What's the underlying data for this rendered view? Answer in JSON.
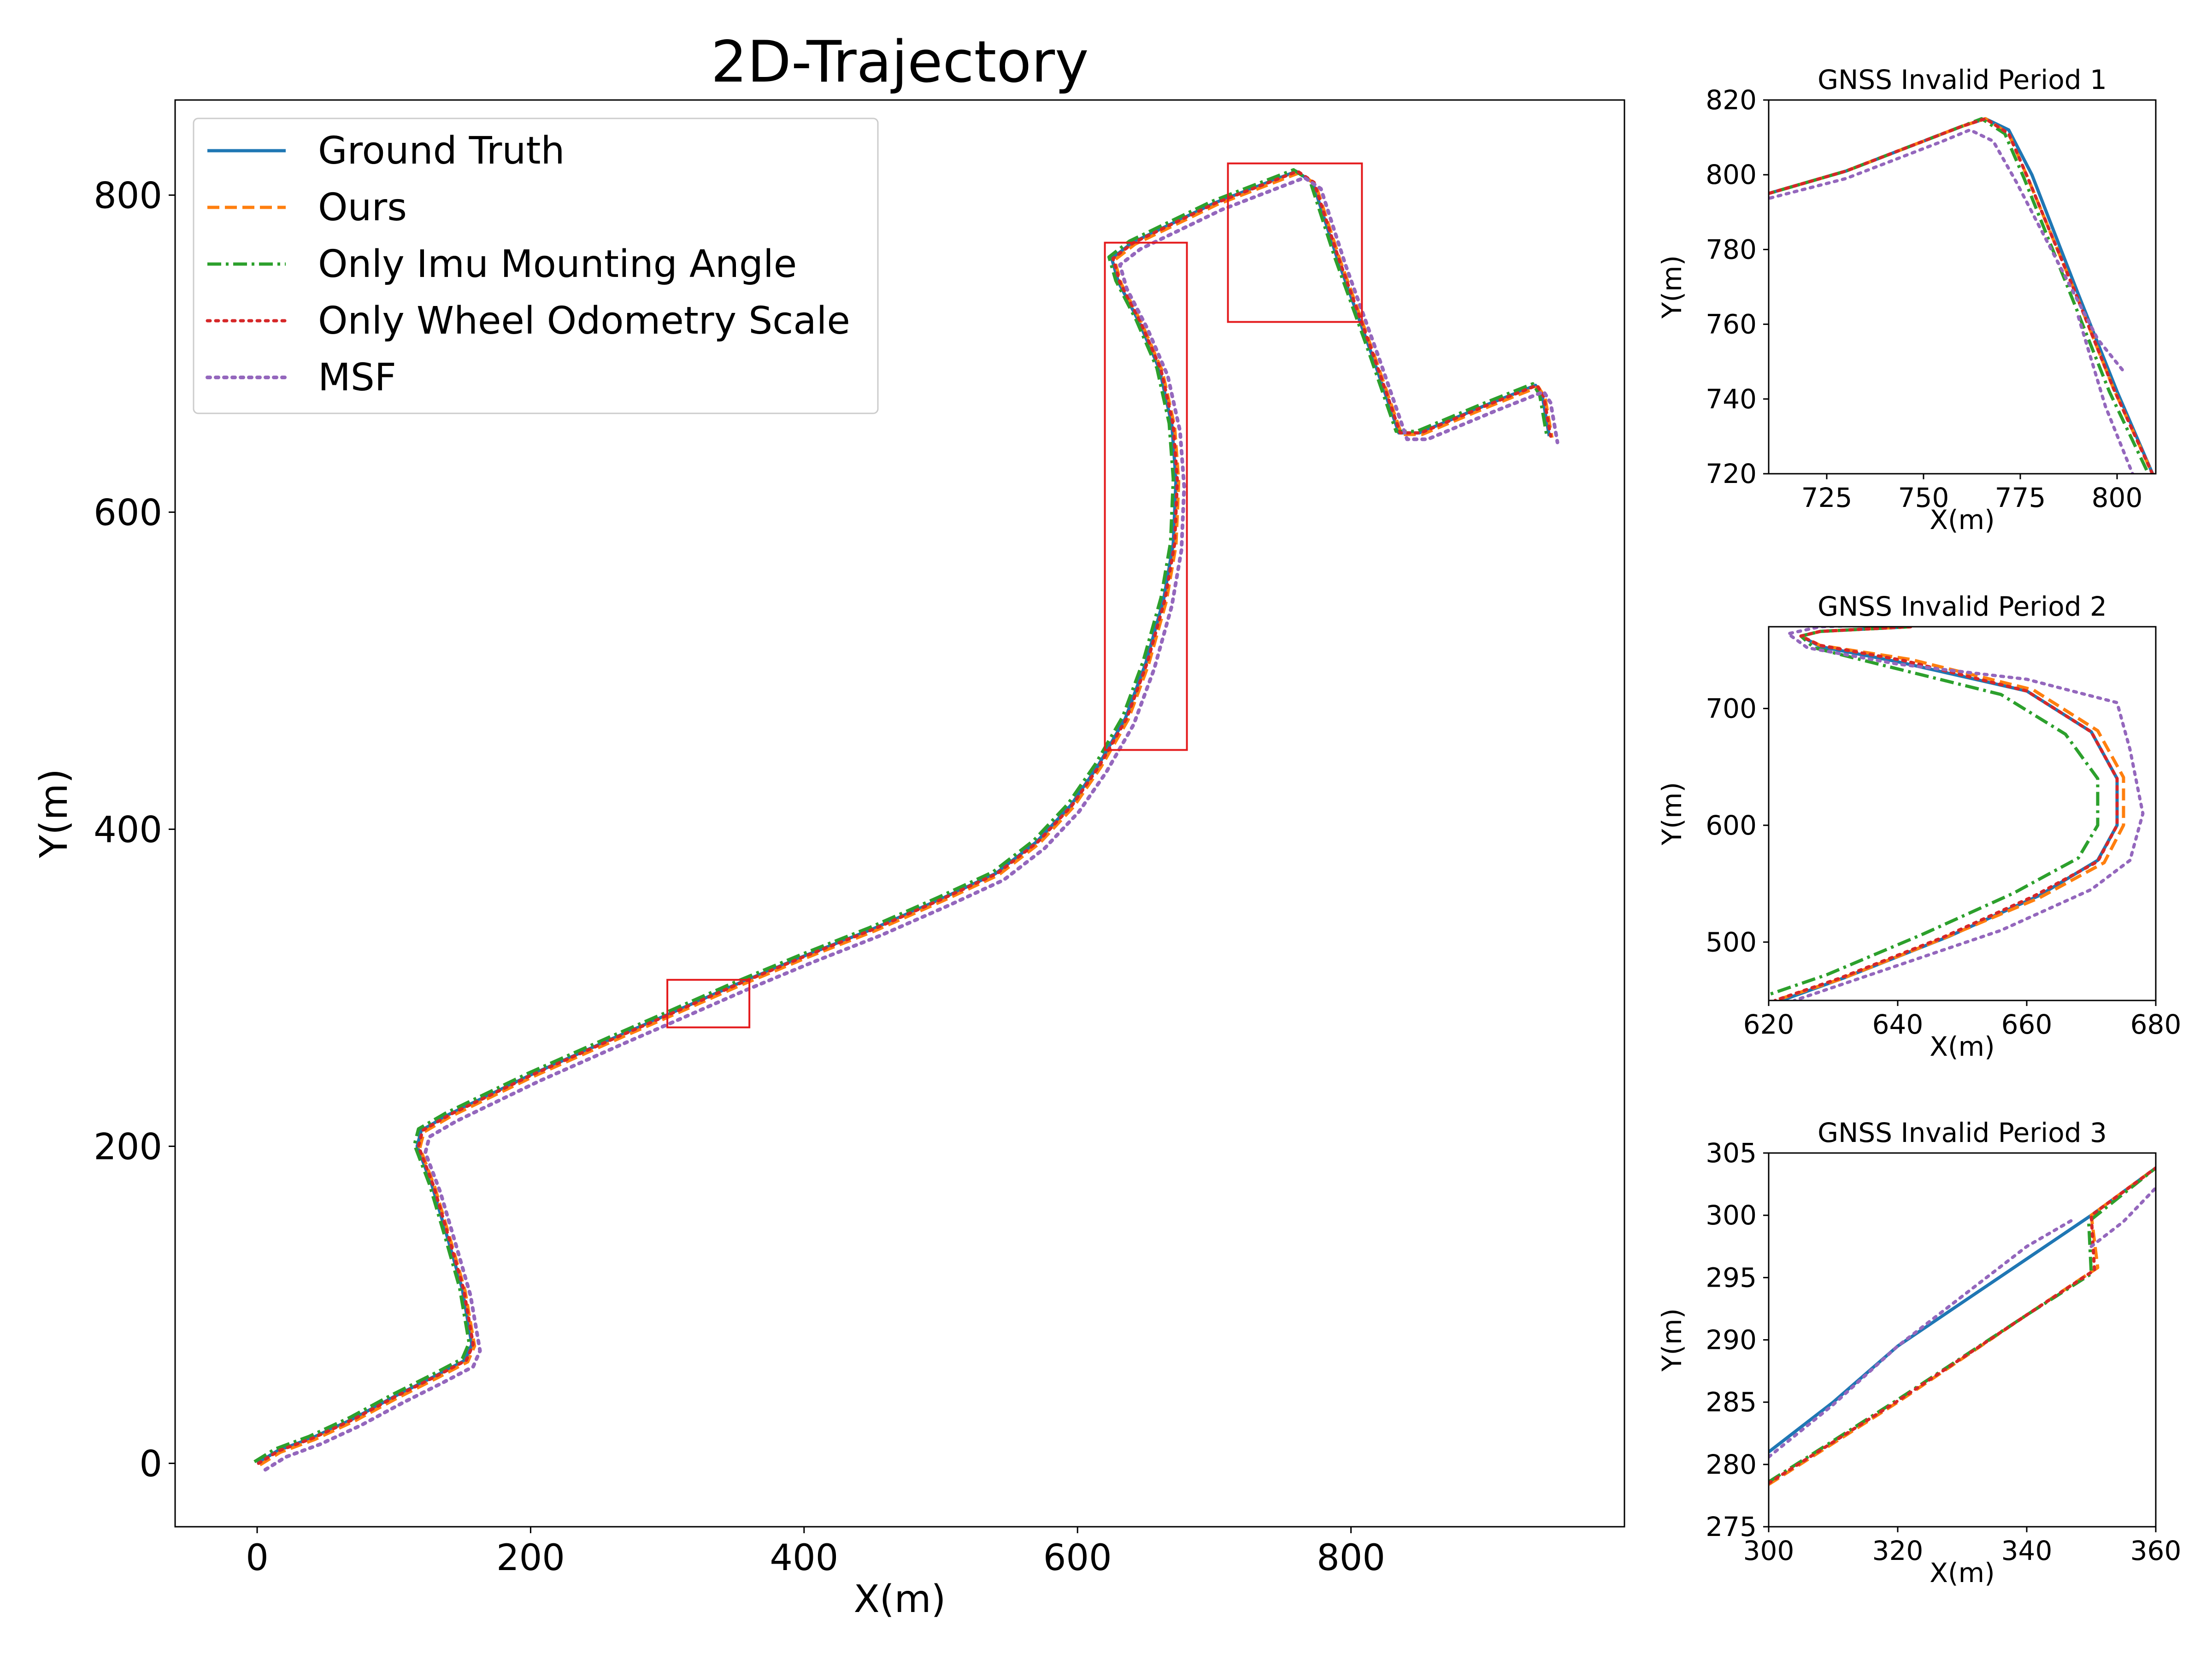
{
  "chart_data": [
    {
      "type": "line",
      "title": "2D-Trajectory",
      "xlabel": "X(m)",
      "ylabel": "Y(m)",
      "xlim": [
        -60,
        1000
      ],
      "ylim": [
        -40,
        860
      ],
      "xticks": [
        0,
        200,
        400,
        600,
        800
      ],
      "yticks": [
        0,
        200,
        400,
        600,
        800
      ],
      "legend_position": "top-left",
      "colors": {
        "ground_truth": "#1f77b4",
        "ours": "#ff7f0e",
        "imu": "#2ca02c",
        "wheel": "#d62728",
        "msf": "#9467bd",
        "box": "#e41a1c"
      },
      "series": [
        {
          "name": "Ground Truth",
          "key": "gt",
          "style": "solid",
          "color": "#1f77b4",
          "width": 7
        },
        {
          "name": "Ours",
          "key": "ours",
          "style": "dashed",
          "color": "#ff7f0e",
          "width": 7
        },
        {
          "name": "Only Imu Mounting Angle",
          "key": "imu",
          "style": "dashdot",
          "color": "#2ca02c",
          "width": 7
        },
        {
          "name": "Only Wheel Odometry Scale",
          "key": "wheel",
          "style": "dotted",
          "color": "#d62728",
          "width": 7
        },
        {
          "name": "MSF",
          "key": "msf",
          "style": "dotted",
          "color": "#9467bd",
          "width": 8
        }
      ],
      "trajectory": [
        [
          0,
          0
        ],
        [
          15,
          8
        ],
        [
          40,
          16
        ],
        [
          70,
          28
        ],
        [
          100,
          42
        ],
        [
          130,
          55
        ],
        [
          152,
          65
        ],
        [
          157,
          75
        ],
        [
          150,
          110
        ],
        [
          140,
          140
        ],
        [
          128,
          175
        ],
        [
          117,
          200
        ],
        [
          120,
          210
        ],
        [
          140,
          220
        ],
        [
          200,
          245
        ],
        [
          260,
          268
        ],
        [
          300,
          283
        ],
        [
          350,
          302
        ],
        [
          400,
          320
        ],
        [
          450,
          337
        ],
        [
          500,
          356
        ],
        [
          540,
          372
        ],
        [
          570,
          392
        ],
        [
          595,
          415
        ],
        [
          615,
          440
        ],
        [
          635,
          470
        ],
        [
          650,
          505
        ],
        [
          663,
          545
        ],
        [
          670,
          580
        ],
        [
          672,
          620
        ],
        [
          669,
          655
        ],
        [
          660,
          690
        ],
        [
          645,
          720
        ],
        [
          630,
          745
        ],
        [
          625,
          760
        ],
        [
          640,
          770
        ],
        [
          700,
          795
        ],
        [
          760,
          815
        ],
        [
          772,
          808
        ],
        [
          790,
          760
        ],
        [
          815,
          700
        ],
        [
          835,
          650
        ],
        [
          850,
          650
        ],
        [
          900,
          668
        ],
        [
          935,
          680
        ],
        [
          940,
          673
        ],
        [
          945,
          648
        ]
      ],
      "ours_offsets": {
        "x": 2,
        "y": -1
      },
      "imu_offsets": {
        "x": -2,
        "y": 1
      },
      "wheel_offsets": {
        "x": 1,
        "y": 0
      },
      "msf_offsets": {
        "x": 6,
        "y": -4
      },
      "boxes": [
        {
          "label": "GNSS Invalid Period 1",
          "x": [
            710,
            808
          ],
          "y": [
            720,
            820
          ]
        },
        {
          "label": "GNSS Invalid Period 2",
          "x": [
            620,
            680
          ],
          "y": [
            450,
            770
          ]
        },
        {
          "label": "GNSS Invalid Period 3",
          "x": [
            300,
            360
          ],
          "y": [
            275,
            305
          ]
        }
      ]
    },
    {
      "type": "line",
      "title": "GNSS Invalid Period 1",
      "xlabel": "X(m)",
      "ylabel": "Y(m)",
      "xlim": [
        710,
        810
      ],
      "ylim": [
        720,
        820
      ],
      "xticks": [
        725,
        750,
        775,
        800
      ],
      "yticks": [
        720,
        740,
        760,
        780,
        800,
        820
      ],
      "series": [
        {
          "key": "gt",
          "color": "#1f77b4",
          "style": "solid",
          "points": [
            [
              700,
              792
            ],
            [
              730,
              801
            ],
            [
              760,
              813
            ],
            [
              766,
              815
            ],
            [
              772,
              812
            ],
            [
              778,
              800
            ],
            [
              790,
              768
            ],
            [
              800,
              742
            ],
            [
              810,
              718
            ]
          ]
        },
        {
          "key": "ours",
          "color": "#ff7f0e",
          "style": "dashed",
          "points": [
            [
              700,
              792
            ],
            [
              730,
              801
            ],
            [
              760,
              813
            ],
            [
              766,
              815
            ],
            [
              772,
              811
            ],
            [
              777,
              799
            ],
            [
              789,
              769
            ],
            [
              799,
              743
            ],
            [
              810,
              718
            ]
          ]
        },
        {
          "key": "imu",
          "color": "#2ca02c",
          "style": "dashdot",
          "points": [
            [
              700,
              792
            ],
            [
              730,
              801
            ],
            [
              760,
              813
            ],
            [
              765,
              815
            ],
            [
              771,
              811
            ],
            [
              776,
              799
            ],
            [
              788,
              768
            ],
            [
              798,
              742
            ],
            [
              809,
              718
            ]
          ]
        },
        {
          "key": "wheel",
          "color": "#d62728",
          "style": "dotted",
          "points": [
            [
              700,
              792
            ],
            [
              730,
              801
            ],
            [
              760,
              813
            ],
            [
              766,
              815
            ],
            [
              772,
              811
            ],
            [
              777,
              799
            ],
            [
              789,
              769
            ],
            [
              799,
              743
            ],
            [
              810,
              718
            ]
          ]
        },
        {
          "key": "msf",
          "color": "#9467bd",
          "style": "dotted",
          "points": [
            [
              700,
              791
            ],
            [
              730,
              799
            ],
            [
              755,
              809
            ],
            [
              762,
              812
            ],
            [
              768,
              809
            ],
            [
              774,
              798
            ],
            [
              788,
              770
            ],
            [
              795,
              756
            ],
            [
              802,
              747
            ]
          ]
        },
        {
          "key": "msf2",
          "color": "#9467bd",
          "style": "dotted",
          "points": [
            [
              790,
              762
            ],
            [
              797,
              738
            ],
            [
              804,
              720
            ]
          ]
        }
      ]
    },
    {
      "type": "line",
      "title": "GNSS Invalid Period 2",
      "xlabel": "X(m)",
      "ylabel": "Y(m)",
      "xlim": [
        620,
        680
      ],
      "ylim": [
        450,
        770
      ],
      "xticks": [
        620,
        640,
        660,
        680
      ],
      "yticks": [
        500,
        600,
        700
      ],
      "series": [
        {
          "key": "gt",
          "color": "#1f77b4",
          "style": "solid",
          "points": [
            [
              642,
              770
            ],
            [
              628,
              766
            ],
            [
              625,
              762
            ],
            [
              628,
              753
            ],
            [
              640,
              740
            ],
            [
              660,
              715
            ],
            [
              670,
              680
            ],
            [
              674,
              640
            ],
            [
              674,
              600
            ],
            [
              671,
              570
            ],
            [
              662,
              540
            ],
            [
              648,
              505
            ],
            [
              632,
              470
            ],
            [
              622,
              450
            ]
          ]
        },
        {
          "key": "ours",
          "color": "#ff7f0e",
          "style": "dashed",
          "points": [
            [
              642,
              770
            ],
            [
              628,
              766
            ],
            [
              625,
              762
            ],
            [
              628,
              754
            ],
            [
              642,
              742
            ],
            [
              661,
              716
            ],
            [
              671,
              681
            ],
            [
              675,
              641
            ],
            [
              675,
              600
            ],
            [
              672,
              568
            ],
            [
              662,
              538
            ],
            [
              647,
              503
            ],
            [
              631,
              468
            ],
            [
              621,
              450
            ]
          ]
        },
        {
          "key": "imu",
          "color": "#2ca02c",
          "style": "dashdot",
          "points": [
            [
              642,
              770
            ],
            [
              628,
              766
            ],
            [
              625,
              762
            ],
            [
              627,
              752
            ],
            [
              637,
              738
            ],
            [
              656,
              712
            ],
            [
              666,
              678
            ],
            [
              671,
              640
            ],
            [
              671,
              600
            ],
            [
              668,
              572
            ],
            [
              658,
              542
            ],
            [
              644,
              507
            ],
            [
              629,
              472
            ],
            [
              620,
              455
            ]
          ]
        },
        {
          "key": "wheel",
          "color": "#d62728",
          "style": "dotted",
          "points": [
            [
              642,
              770
            ],
            [
              628,
              766
            ],
            [
              625,
              762
            ],
            [
              628,
              754
            ],
            [
              641,
              741
            ],
            [
              660,
              715
            ],
            [
              670,
              680
            ],
            [
              674,
              640
            ],
            [
              674,
              600
            ],
            [
              671,
              569
            ],
            [
              661,
              539
            ],
            [
              647,
              504
            ],
            [
              631,
              469
            ],
            [
              621,
              450
            ]
          ]
        },
        {
          "key": "msf",
          "color": "#9467bd",
          "style": "dotted",
          "points": [
            [
              648,
              774
            ],
            [
              628,
              770
            ],
            [
              623,
              764
            ],
            [
              626,
              752
            ],
            [
              640,
              738
            ],
            [
              660,
              725
            ],
            [
              674,
              705
            ],
            [
              676,
              665
            ],
            [
              678,
              610
            ],
            [
              676,
              570
            ],
            [
              670,
              545
            ],
            [
              656,
              510
            ],
            [
              640,
              480
            ],
            [
              624,
              450
            ]
          ]
        }
      ]
    },
    {
      "type": "line",
      "title": "GNSS Invalid Period 3",
      "xlabel": "X(m)",
      "ylabel": "Y(m)",
      "xlim": [
        300,
        360
      ],
      "ylim": [
        275,
        305
      ],
      "xticks": [
        300,
        320,
        340,
        360
      ],
      "yticks": [
        275,
        280,
        285,
        290,
        295,
        300,
        305
      ],
      "series": [
        {
          "key": "gt",
          "color": "#1f77b4",
          "style": "solid",
          "points": [
            [
              300,
              281
            ],
            [
              310,
              285
            ],
            [
              320,
              289.5
            ],
            [
              330,
              293
            ],
            [
              340,
              296.5
            ],
            [
              350,
              300
            ],
            [
              360,
              303.8
            ]
          ]
        },
        {
          "key": "ours",
          "color": "#ff7f0e",
          "style": "dashed",
          "points": [
            [
              300,
              278.4
            ],
            [
              320,
              285
            ],
            [
              340,
              292
            ],
            [
              351,
              295.8
            ],
            [
              350,
              300
            ],
            [
              360,
              303.8
            ]
          ]
        },
        {
          "key": "imu",
          "color": "#2ca02c",
          "style": "dashdot",
          "points": [
            [
              300,
              278.6
            ],
            [
              320,
              285.2
            ],
            [
              340,
              292
            ],
            [
              350,
              295.3
            ],
            [
              349.6,
              299.5
            ],
            [
              360,
              303.8
            ]
          ]
        },
        {
          "key": "wheel",
          "color": "#d62728",
          "style": "dotted",
          "points": [
            [
              300,
              278.5
            ],
            [
              320,
              285.1
            ],
            [
              340,
              292
            ],
            [
              350.5,
              295.6
            ],
            [
              350,
              300
            ],
            [
              360,
              303.8
            ]
          ]
        },
        {
          "key": "msf",
          "color": "#9467bd",
          "style": "dotted",
          "points": [
            [
              300,
              280.6
            ],
            [
              310,
              284.8
            ],
            [
              320,
              289.5
            ],
            [
              330,
              293.5
            ],
            [
              340,
              297.5
            ],
            [
              347,
              299.6
            ]
          ]
        },
        {
          "key": "msf2",
          "color": "#9467bd",
          "style": "dotted",
          "points": [
            [
              350,
              297.5
            ],
            [
              355,
              299.5
            ],
            [
              360,
              302.2
            ]
          ]
        }
      ]
    }
  ]
}
